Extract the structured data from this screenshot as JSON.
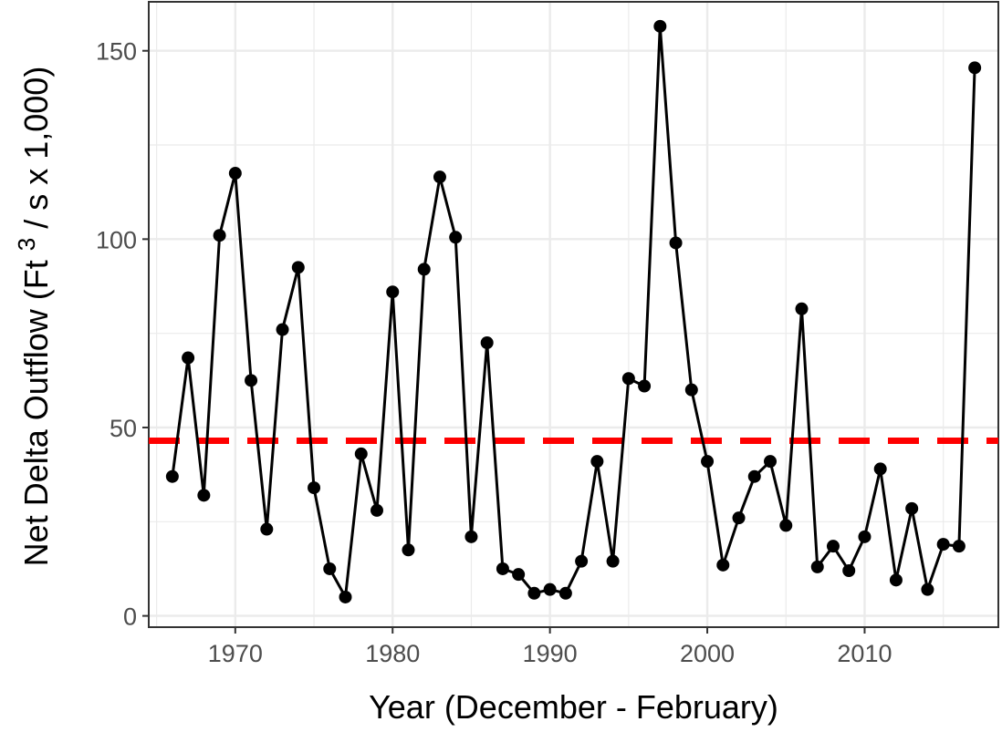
{
  "chart_data": {
    "type": "line",
    "xlabel": "Year (December - February)",
    "ylabel_prefix": "Net Delta Outflow (Ft",
    "ylabel_sup": "3",
    "ylabel_suffix": " / s x 1,000)",
    "xlim": [
      1964.5,
      2018.5
    ],
    "ylim": [
      -3,
      163
    ],
    "x_ticks": [
      1970,
      1980,
      1990,
      2000,
      2010
    ],
    "x_tick_labels": [
      "1970",
      "1980",
      "1990",
      "2000",
      "2010"
    ],
    "y_ticks": [
      0,
      50,
      100,
      150
    ],
    "y_tick_labels": [
      "0",
      "50",
      "100",
      "150"
    ],
    "grid": true,
    "reference_line": {
      "y": 46.5,
      "color": "#ff0000",
      "style": "dashed"
    },
    "series": [
      {
        "color": "#000000",
        "x": [
          1966,
          1967,
          1968,
          1969,
          1970,
          1971,
          1972,
          1973,
          1974,
          1975,
          1976,
          1977,
          1978,
          1979,
          1980,
          1981,
          1982,
          1983,
          1984,
          1985,
          1986,
          1987,
          1988,
          1989,
          1990,
          1991,
          1992,
          1993,
          1994,
          1995,
          1996,
          1997,
          1998,
          1999,
          2000,
          2001,
          2002,
          2003,
          2004,
          2005,
          2006,
          2007,
          2008,
          2009,
          2010,
          2011,
          2012,
          2013,
          2014,
          2015,
          2016,
          2017
        ],
        "values": [
          37,
          68.5,
          32,
          101,
          117.5,
          62.5,
          23,
          76,
          92.5,
          34,
          12.5,
          5,
          43,
          28,
          86,
          17.5,
          92,
          116.5,
          100.5,
          21,
          72.5,
          12.5,
          11,
          6,
          7,
          6,
          14.5,
          41,
          14.5,
          63,
          61,
          156.5,
          99,
          60,
          41,
          13.5,
          26,
          37,
          41,
          24,
          81.5,
          13,
          18.5,
          12,
          21,
          39,
          9.5,
          28.5,
          7,
          19,
          18.5,
          145.5
        ]
      }
    ]
  }
}
